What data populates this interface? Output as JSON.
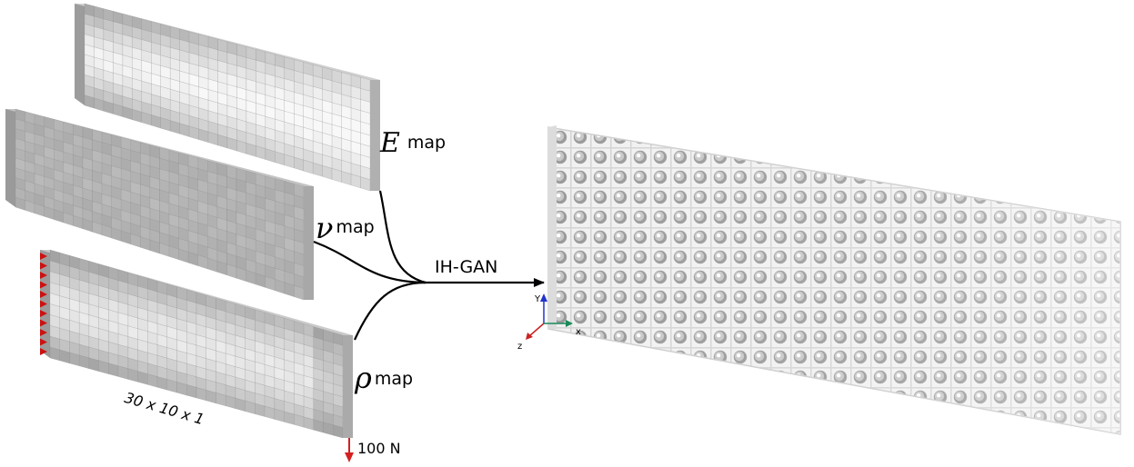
{
  "inputs": {
    "e_map": {
      "symbol": "E",
      "label": "map"
    },
    "nu_map": {
      "symbol": "ν",
      "label": "map"
    },
    "rho_map": {
      "symbol": "ρ",
      "label": "map"
    },
    "dimensions": "30 x 10 x 1",
    "load": "100 N"
  },
  "model": {
    "label": "IH-GAN"
  },
  "axes": {
    "x": "x",
    "y": "Y",
    "z": "z"
  },
  "colors": {
    "load_arrow": "#d42020",
    "support_markers": "#cc1111",
    "axis_x": "#1a8a5a",
    "axis_y": "#2233cc",
    "axis_z": "#cc2222",
    "flow_lines": "#000000",
    "lattice": "#e6e6e6"
  },
  "grid": {
    "columns": 30,
    "rows": 10
  }
}
